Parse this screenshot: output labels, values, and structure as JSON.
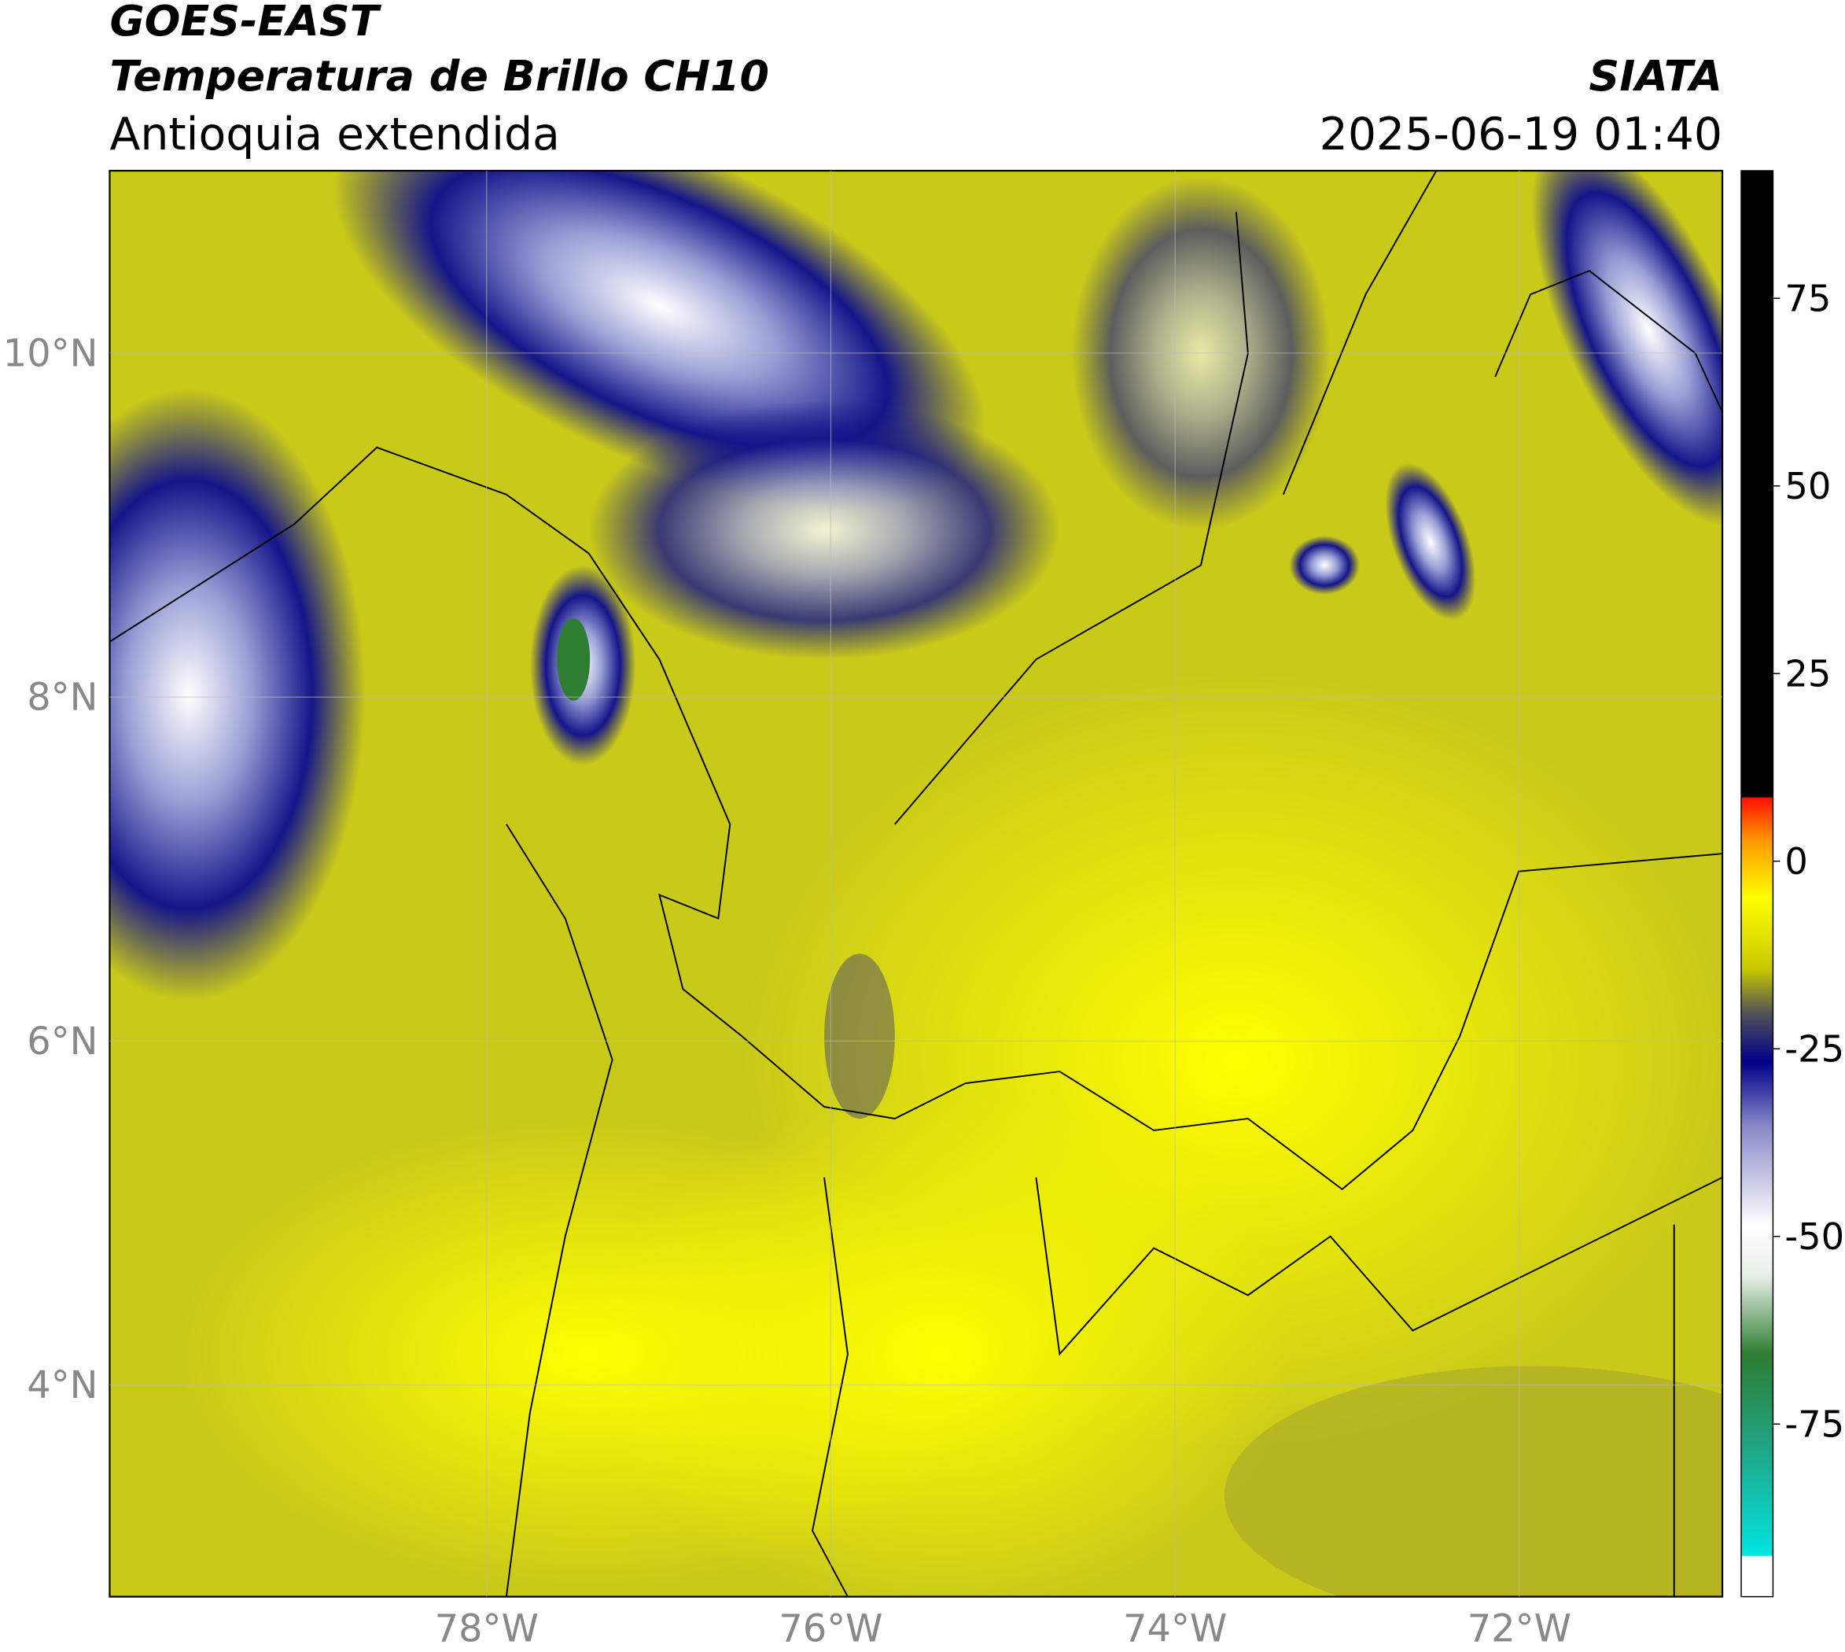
{
  "header": {
    "title_line1": "GOES-EAST",
    "title_line2": "Temperatura de Brillo CH10",
    "subtitle": "Antioquia extendida",
    "source": "SIATA",
    "datetime": "2025-06-19 01:40"
  },
  "map": {
    "xlim": [
      -80.19,
      -70.82
    ],
    "ylim": [
      2.77,
      11.06
    ],
    "xticks": [
      {
        "value": -78,
        "label": "78°W"
      },
      {
        "value": -76,
        "label": "76°W"
      },
      {
        "value": -74,
        "label": "74°W"
      },
      {
        "value": -72,
        "label": "72°W"
      }
    ],
    "yticks": [
      {
        "value": 10,
        "label": "10°N"
      },
      {
        "value": 8,
        "label": "8°N"
      },
      {
        "value": 6,
        "label": "6°N"
      },
      {
        "value": 4,
        "label": "4°N"
      }
    ]
  },
  "colorbar": {
    "lim": [
      -98,
      92
    ],
    "ticks": [
      75,
      50,
      25,
      0,
      -25,
      -50,
      -75
    ]
  }
}
